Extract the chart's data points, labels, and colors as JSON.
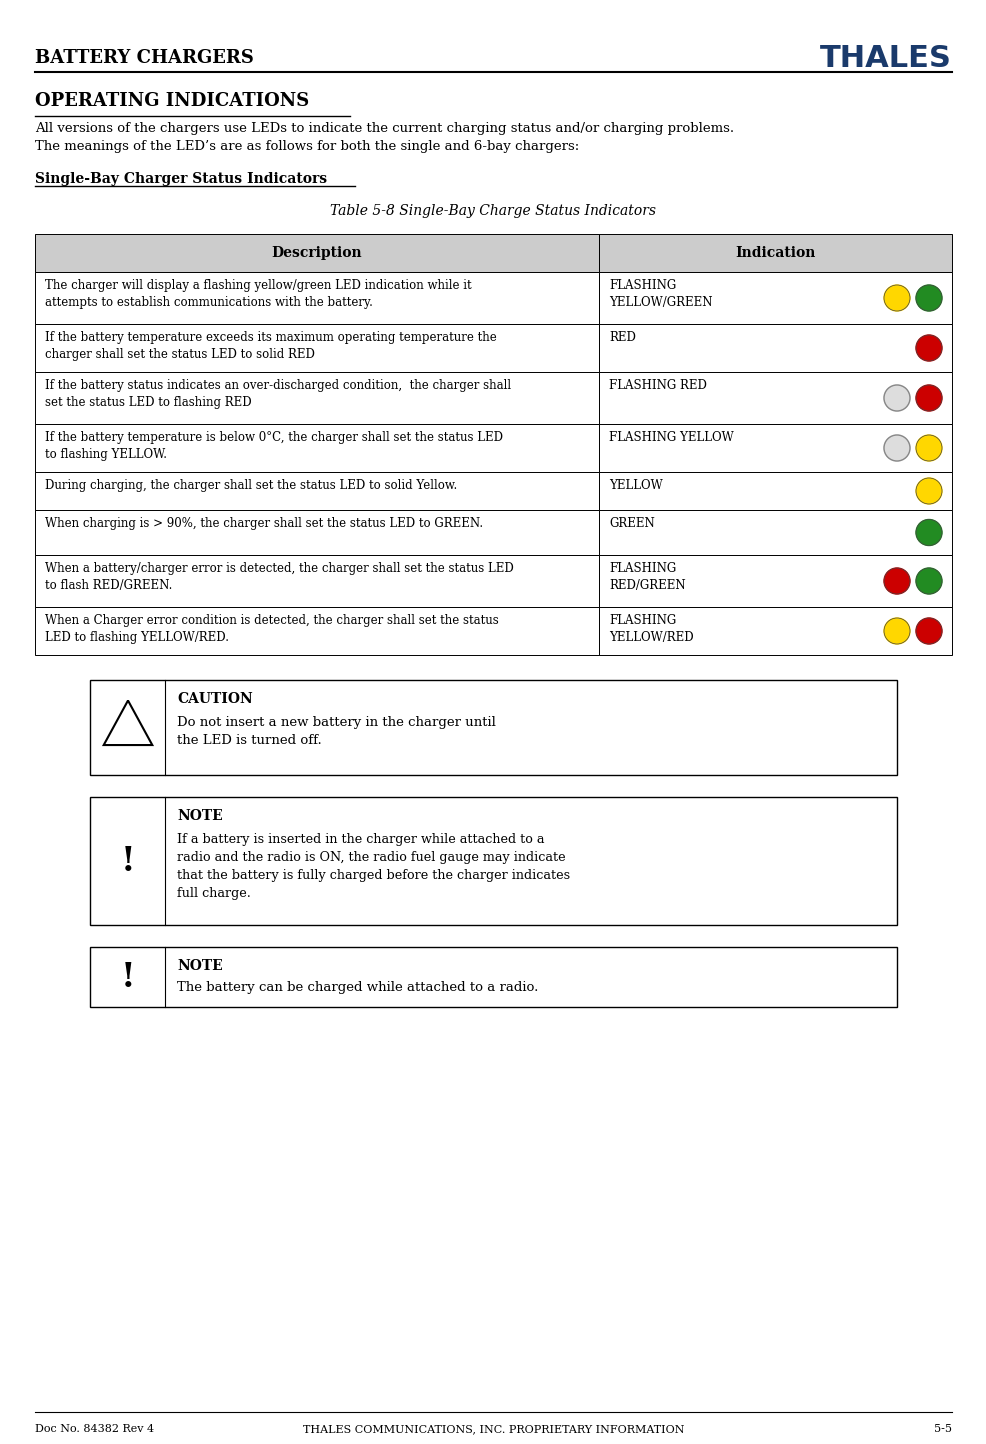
{
  "page_width": 9.87,
  "page_height": 14.44,
  "bg_color": "#ffffff",
  "header_title": "BATTERY CHARGERS",
  "thales_text": "THALES",
  "section_title": "OPERATING INDICATIONS",
  "section_body": "All versions of the chargers use LEDs to indicate the current charging status and/or charging problems.\nThe meanings of the LED’s are as follows for both the single and 6-bay chargers:",
  "subsection_title": "Single-Bay Charger Status Indicators",
  "table_caption": "Table 5-8 Single-Bay Charge Status Indicators",
  "table_headers": [
    "Description",
    "Indication"
  ],
  "table_rows": [
    {
      "desc": "The charger will display a flashing yellow/green LED indication while it\nattempts to establish communications with the battery.",
      "indication": "FLASHING\nYELLOW/GREEN",
      "leds": [
        {
          "color": "#FFD700",
          "outline": false
        },
        {
          "color": "#228B22",
          "outline": false
        }
      ]
    },
    {
      "desc": "If the battery temperature exceeds its maximum operating temperature the\ncharger shall set the status LED to solid RED",
      "indication": "RED",
      "leds": [
        {
          "color": "#CC0000",
          "outline": false
        }
      ]
    },
    {
      "desc": "If the battery status indicates an over-discharged condition,  the charger shall\nset the status LED to flashing RED",
      "indication": "FLASHING RED",
      "leds": [
        {
          "color": "#dddddd",
          "outline": true
        },
        {
          "color": "#CC0000",
          "outline": false
        }
      ]
    },
    {
      "desc": "If the battery temperature is below 0°C, the charger shall set the status LED\nto flashing YELLOW.",
      "indication": "FLASHING YELLOW",
      "leds": [
        {
          "color": "#dddddd",
          "outline": true
        },
        {
          "color": "#FFD700",
          "outline": false
        }
      ]
    },
    {
      "desc": "During charging, the charger shall set the status LED to solid Yellow.",
      "indication": "YELLOW",
      "leds": [
        {
          "color": "#FFD700",
          "outline": false
        }
      ]
    },
    {
      "desc": "When charging is > 90%, the charger shall set the status LED to GREEN.",
      "indication": "GREEN",
      "leds": [
        {
          "color": "#228B22",
          "outline": false
        }
      ]
    },
    {
      "desc": "When a battery/charger error is detected, the charger shall set the status LED\nto flash RED/GREEN.",
      "indication": "FLASHING\nRED/GREEN",
      "leds": [
        {
          "color": "#CC0000",
          "outline": false
        },
        {
          "color": "#228B22",
          "outline": false
        }
      ]
    },
    {
      "desc": "When a Charger error condition is detected, the charger shall set the status\nLED to flashing YELLOW/RED.",
      "indication": "FLASHING\nYELLOW/RED",
      "leds": [
        {
          "color": "#FFD700",
          "outline": false
        },
        {
          "color": "#CC0000",
          "outline": false
        }
      ]
    }
  ],
  "caution_title": "CAUTION",
  "caution_text": "Do not insert a new battery in the charger until\nthe LED is turned off.",
  "note1_title": "NOTE",
  "note1_text": "If a battery is inserted in the charger while attached to a\nradio and the radio is ON, the radio fuel gauge may indicate\nthat the battery is fully charged before the charger indicates\nfull charge.",
  "note2_title": "NOTE",
  "note2_text": "The battery can be charged while attached to a radio.",
  "footer_left": "Doc No. 84382 Rev 4",
  "footer_center": "THALES COMMUNICATIONS, INC. PROPRIETARY INFORMATION",
  "footer_right": "5-5"
}
